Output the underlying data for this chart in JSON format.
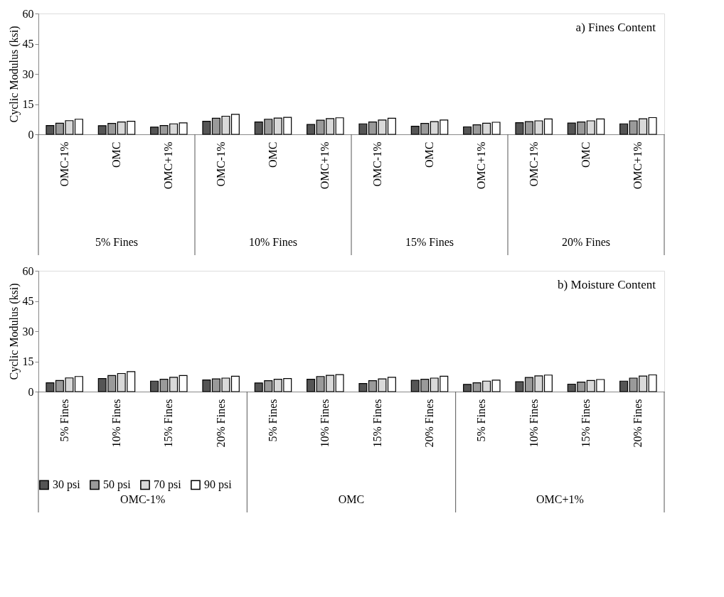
{
  "chart_data": [
    {
      "type": "bar",
      "ylabel": "Cyclic Modulus (ksi)",
      "ylim": [
        0,
        60
      ],
      "yticks": [
        0,
        15,
        30,
        45,
        60
      ],
      "grid": false,
      "legend": false,
      "categories": [
        "OMC-1%",
        "OMC",
        "OMC+1%",
        "OMC-1%",
        "OMC",
        "OMC+1%",
        "OMC-1%",
        "OMC",
        "OMC+1%",
        "OMC-1%",
        "OMC",
        "OMC+1%"
      ],
      "annotations": [
        "a) Fines Content",
        "5% Fines",
        "10% Fines",
        "15% Fines",
        "20% Fines"
      ],
      "series": [
        {
          "color": "#555555",
          "values": [
            4.4,
            4.3,
            3.6,
            6.5,
            6.1,
            4.9,
            5.2,
            4.0,
            3.7,
            5.8,
            5.6,
            5.2
          ]
        },
        {
          "color": "#9a9a9a",
          "values": [
            5.5,
            5.4,
            4.4,
            8.0,
            7.5,
            7.0,
            6.1,
            5.4,
            4.7,
            6.3,
            6.1,
            6.7
          ]
        },
        {
          "color": "#d9d9d9",
          "values": [
            6.8,
            6.1,
            5.2,
            9.0,
            8.1,
            7.8,
            7.1,
            6.3,
            5.5,
            6.7,
            6.7,
            7.7
          ]
        },
        {
          "color": "#ffffff",
          "values": [
            7.5,
            6.5,
            5.7,
            9.9,
            8.4,
            8.2,
            8.0,
            7.1,
            6.0,
            7.6,
            7.6,
            8.3
          ]
        }
      ]
    },
    {
      "type": "bar",
      "ylabel": "Cyclic Modulus (ksi)",
      "ylim": [
        0,
        60
      ],
      "yticks": [
        0,
        15,
        30,
        45,
        60
      ],
      "grid": false,
      "legend": "bottom",
      "categories": [
        "5% Fines",
        "10% Fines",
        "15% Fines",
        "20% Fines",
        "5% Fines",
        "10% Fines",
        "15% Fines",
        "20% Fines",
        "5% Fines",
        "10% Fines",
        "15% Fines",
        "20% Fines"
      ],
      "annotations": [
        "b) Moisture Content",
        "OMC-1%",
        "OMC",
        "OMC+1%"
      ],
      "series": [
        {
          "name": "30 psi",
          "color": "#555555",
          "values": [
            4.4,
            6.5,
            5.2,
            5.8,
            4.3,
            6.1,
            4.0,
            5.6,
            3.6,
            4.9,
            3.7,
            5.2
          ]
        },
        {
          "name": "50 psi",
          "color": "#9a9a9a",
          "values": [
            5.5,
            8.0,
            6.1,
            6.3,
            5.4,
            7.5,
            5.4,
            6.1,
            4.4,
            7.0,
            4.7,
            6.7
          ]
        },
        {
          "name": "70 psi",
          "color": "#d9d9d9",
          "values": [
            6.8,
            9.0,
            7.1,
            6.7,
            6.1,
            8.1,
            6.3,
            6.7,
            5.2,
            7.8,
            5.5,
            7.7
          ]
        },
        {
          "name": "90 psi",
          "color": "#ffffff",
          "values": [
            7.5,
            9.9,
            8.0,
            7.6,
            6.5,
            8.4,
            7.1,
            7.6,
            5.7,
            8.2,
            6.0,
            8.3
          ]
        }
      ]
    }
  ]
}
